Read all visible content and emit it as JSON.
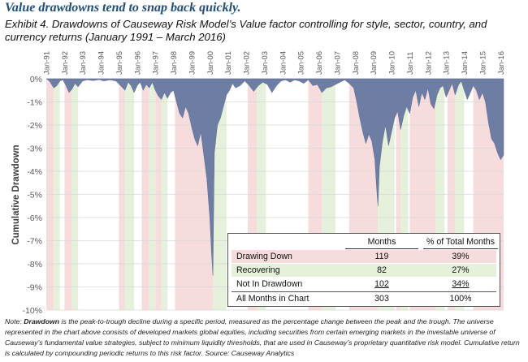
{
  "headline": "Value drawdowns tend to snap back quickly.",
  "exhibit": "Exhibit 4. Drawdowns of Causeway Risk Model’s Value factor controlling for style, sector, country, and currency returns (January 1991 – March 2016)",
  "note": {
    "label": "Note:",
    "term": "Drawdown",
    "text": " is the peak-to-trough decline during a specific period, measured as the percentage change between the peak and the trough. The universe represented in the chart above consists of developed markets global equities, including securities from certain emerging markets in the investable universe of Causeway’s fundamental value strategies, subject to minimum liquidity thresholds, that are used in Causeway’s proprietary quantitative risk model. Cumulative return is calculated by compounding periodic returns to this risk factor. Source: Causeway Analytics"
  },
  "colors": {
    "area": "#6e7da3",
    "drawing_down_band": "#f6dcdc",
    "recovering_band": "#e6f1dc",
    "grid": "#d9d9d9",
    "axis_text": "#595959"
  },
  "chart_data": {
    "type": "area",
    "ylabel": "Cumulative Drawdown",
    "ylim": [
      -10,
      0
    ],
    "y_ticks": [
      0,
      -1,
      -2,
      -3,
      -4,
      -5,
      -6,
      -7,
      -8,
      -9,
      -10
    ],
    "y_tick_labels": [
      "0%",
      "-1%",
      "-2%",
      "-3%",
      "-4%",
      "-5%",
      "-6%",
      "-7%",
      "-8%",
      "-9%",
      "-10%"
    ],
    "x_ticks": [
      "Jan-91",
      "Jan-92",
      "Jan-93",
      "Jan-94",
      "Jan-95",
      "Jan-96",
      "Jan-97",
      "Jan-98",
      "Jan-99",
      "Jan-00",
      "Jan-01",
      "Jan-02",
      "Jan-03",
      "Jan-04",
      "Jan-05",
      "Jan-06",
      "Jan-07",
      "Jan-08",
      "Jan-09",
      "Jan-10",
      "Jan-11",
      "Jan-12",
      "Jan-13",
      "Jan-14",
      "Jan-15",
      "Jan-16"
    ],
    "x_range": [
      "1991-01",
      "2016-03"
    ],
    "grid": "horizontal",
    "series": [
      {
        "x": [
          "1991-01",
          "1991-03",
          "1991-06",
          "1991-08",
          "1991-10",
          "1991-12",
          "1992-02",
          "1992-04",
          "1992-06",
          "1992-08",
          "1992-10",
          "1993-01",
          "1993-04",
          "1993-08",
          "1993-12",
          "1994-03",
          "1994-07",
          "1994-11",
          "1995-02",
          "1995-05",
          "1995-07",
          "1995-09",
          "1995-11",
          "1996-01",
          "1996-03",
          "1996-05",
          "1996-07",
          "1996-09",
          "1996-11",
          "1997-01",
          "1997-03",
          "1997-05",
          "1997-07",
          "1997-09",
          "1997-11",
          "1998-01",
          "1998-03",
          "1998-05",
          "1998-07",
          "1998-09",
          "1998-11",
          "1999-01",
          "1999-03",
          "1999-05",
          "1999-07",
          "1999-09",
          "1999-11",
          "2000-01",
          "2000-02",
          "2000-03",
          "2000-04",
          "2000-06",
          "2000-08",
          "2000-10",
          "2000-12",
          "2001-02",
          "2001-04",
          "2001-06",
          "2001-09",
          "2001-12",
          "2002-03",
          "2002-06",
          "2002-09",
          "2002-12",
          "2003-03",
          "2003-06",
          "2003-09",
          "2003-12",
          "2004-03",
          "2004-06",
          "2004-09",
          "2004-12",
          "2005-03",
          "2005-06",
          "2005-09",
          "2005-12",
          "2006-03",
          "2006-06",
          "2006-09",
          "2006-12",
          "2007-03",
          "2007-06",
          "2007-09",
          "2007-12",
          "2008-02",
          "2008-04",
          "2008-06",
          "2008-08",
          "2008-10",
          "2008-12",
          "2009-02",
          "2009-03",
          "2009-04",
          "2009-05",
          "2009-07",
          "2009-09",
          "2009-11",
          "2010-01",
          "2010-03",
          "2010-05",
          "2010-07",
          "2010-09",
          "2010-11",
          "2011-01",
          "2011-03",
          "2011-05",
          "2011-07",
          "2011-09",
          "2011-11",
          "2012-01",
          "2012-03",
          "2012-05",
          "2012-07",
          "2012-09",
          "2012-11",
          "2013-01",
          "2013-03",
          "2013-05",
          "2013-07",
          "2013-09",
          "2013-11",
          "2014-01",
          "2014-03",
          "2014-05",
          "2014-07",
          "2014-09",
          "2014-11",
          "2015-01",
          "2015-03",
          "2015-05",
          "2015-07",
          "2015-09",
          "2015-11",
          "2016-01",
          "2016-03"
        ],
        "y": [
          0,
          -0.1,
          -0.4,
          -0.3,
          -0.1,
          -0.05,
          -0.3,
          -0.6,
          -0.45,
          -0.2,
          -0.35,
          -0.1,
          -0.05,
          -0.08,
          -0.04,
          -0.1,
          -0.05,
          -0.1,
          -0.3,
          -0.5,
          -0.15,
          -0.3,
          -0.6,
          -0.3,
          -0.15,
          -0.5,
          -0.25,
          -0.4,
          -0.15,
          -0.5,
          -0.75,
          -0.9,
          -0.6,
          -0.85,
          -0.6,
          -0.5,
          -1.0,
          -1.5,
          -1.7,
          -1.2,
          -1.5,
          -2.1,
          -2.6,
          -2.9,
          -2.3,
          -3.3,
          -4.3,
          -6.0,
          -7.4,
          -8.5,
          -3.2,
          -2.0,
          -1.7,
          -1.2,
          -0.7,
          -0.5,
          -0.2,
          -0.4,
          -0.3,
          -0.1,
          -0.3,
          -0.55,
          -0.3,
          -0.15,
          -0.25,
          -0.6,
          -0.3,
          -0.1,
          -0.05,
          -0.15,
          -0.05,
          -0.1,
          -0.2,
          -0.05,
          -0.3,
          -0.25,
          -0.6,
          -0.4,
          -0.35,
          -0.25,
          -0.15,
          -0.05,
          -0.2,
          -0.4,
          -1.0,
          -1.7,
          -2.3,
          -2.8,
          -2.4,
          -2.7,
          -3.5,
          -4.6,
          -5.5,
          -3.8,
          -2.7,
          -2.0,
          -2.9,
          -2.3,
          -1.7,
          -1.4,
          -2.2,
          -1.6,
          -1.2,
          -1.5,
          -0.8,
          -0.5,
          -1.2,
          -0.6,
          -0.9,
          -0.4,
          -1.1,
          -1.3,
          -0.7,
          -0.4,
          -0.3,
          -0.8,
          -0.5,
          -0.2,
          -0.7,
          -0.3,
          -0.1,
          -0.5,
          -0.9,
          -0.6,
          -0.3,
          -0.5,
          -0.9,
          -0.6,
          -1.0,
          -1.9,
          -2.6,
          -2.8,
          -3.2,
          -3.5,
          -3.3
        ]
      }
    ],
    "regimes": {
      "drawing_down": [
        [
          "1991-01",
          "1991-06"
        ],
        [
          "1992-01",
          "1992-06"
        ],
        [
          "1995-01",
          "1995-05"
        ],
        [
          "1996-04",
          "1996-09"
        ],
        [
          "1997-01",
          "1997-05"
        ],
        [
          "1998-02",
          "2000-03"
        ],
        [
          "2002-02",
          "2002-08"
        ],
        [
          "2005-06",
          "2006-03"
        ],
        [
          "2007-09",
          "2009-04"
        ],
        [
          "2010-04",
          "2010-07"
        ],
        [
          "2011-01",
          "2012-06"
        ],
        [
          "2013-02",
          "2013-07"
        ],
        [
          "2014-07",
          "2016-03"
        ]
      ],
      "recovering": [
        [
          "1991-06",
          "1991-10"
        ],
        [
          "1992-06",
          "1992-10"
        ],
        [
          "1995-05",
          "1995-11"
        ],
        [
          "1996-09",
          "1997-01"
        ],
        [
          "1997-05",
          "1997-09"
        ],
        [
          "2000-03",
          "2000-12"
        ],
        [
          "2002-08",
          "2003-02"
        ],
        [
          "2006-03",
          "2006-12"
        ],
        [
          "2009-04",
          "2010-03"
        ],
        [
          "2010-07",
          "2010-12"
        ],
        [
          "2012-06",
          "2012-12"
        ],
        [
          "2013-07",
          "2014-01"
        ]
      ]
    },
    "table": {
      "headers": [
        "",
        "Months",
        "% of Total Months"
      ],
      "rows": [
        [
          "Drawing Down",
          "119",
          "39%"
        ],
        [
          "Recovering",
          "82",
          "27%"
        ],
        [
          "Not In Drawdown",
          "102",
          "34%"
        ],
        [
          "All Months in Chart",
          "303",
          "100%"
        ]
      ]
    }
  }
}
